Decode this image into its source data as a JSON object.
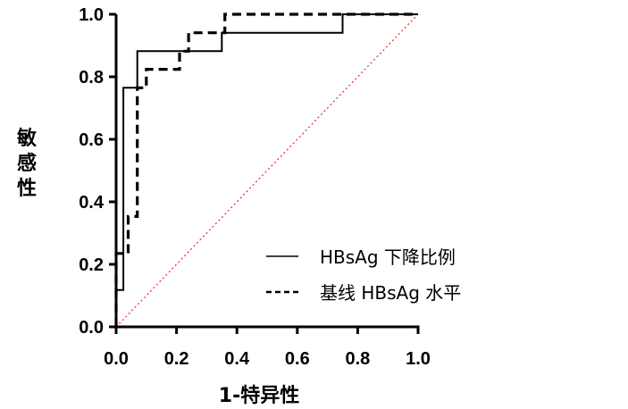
{
  "chart_data": {
    "type": "line",
    "xlabel": "1-特异性",
    "ylabel": "敏感性",
    "xlim": [
      0,
      1
    ],
    "ylim": [
      0,
      1
    ],
    "x_ticks": [
      "0.0",
      "0.2",
      "0.4",
      "0.6",
      "0.8",
      "1.0"
    ],
    "y_ticks": [
      "0.0",
      "0.2",
      "0.4",
      "0.6",
      "0.8",
      "1.0"
    ],
    "legend_position": "bottom-right",
    "grid": false,
    "series": [
      {
        "name": "HBsAg 下降比例",
        "style": "solid",
        "color": "#000000",
        "points": [
          [
            0,
            0
          ],
          [
            0,
            0.118
          ],
          [
            0.024,
            0.118
          ],
          [
            0.024,
            0.765
          ],
          [
            0.07,
            0.765
          ],
          [
            0.07,
            0.882
          ],
          [
            0.35,
            0.882
          ],
          [
            0.35,
            0.941
          ],
          [
            0.75,
            0.941
          ],
          [
            0.75,
            1.0
          ],
          [
            1.0,
            1.0
          ]
        ]
      },
      {
        "name": "基线 HBsAg 水平",
        "style": "dashed",
        "color": "#000000",
        "points": [
          [
            0,
            0
          ],
          [
            0,
            0.235
          ],
          [
            0.04,
            0.235
          ],
          [
            0.04,
            0.353
          ],
          [
            0.07,
            0.353
          ],
          [
            0.07,
            0.765
          ],
          [
            0.1,
            0.765
          ],
          [
            0.1,
            0.824
          ],
          [
            0.21,
            0.824
          ],
          [
            0.21,
            0.882
          ],
          [
            0.24,
            0.882
          ],
          [
            0.24,
            0.941
          ],
          [
            0.36,
            0.941
          ],
          [
            0.36,
            1.0
          ],
          [
            1.0,
            1.0
          ]
        ]
      },
      {
        "name": "",
        "style": "dotted",
        "color": "#e8262b",
        "points": [
          [
            0,
            0
          ],
          [
            1,
            1
          ]
        ]
      }
    ]
  }
}
